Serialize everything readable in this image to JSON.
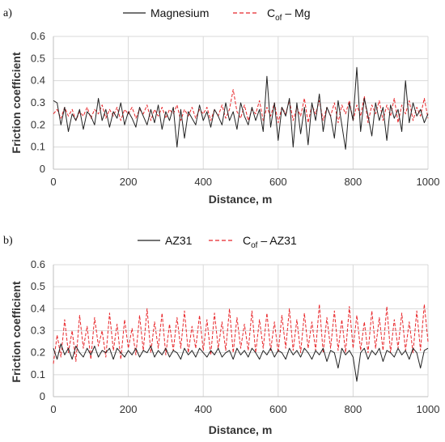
{
  "chart_data": [
    {
      "type": "line",
      "panel_label": "a)",
      "xlabel": "Distance, m",
      "ylabel": "Friction coefficient",
      "xlim": [
        0,
        1000
      ],
      "ylim": [
        0,
        0.6
      ],
      "xticks": [
        0,
        200,
        400,
        600,
        800,
        1000
      ],
      "yticks": [
        0,
        0.1,
        0.2,
        0.3,
        0.4,
        0.5,
        0.6
      ],
      "grid": true,
      "legend_position": "top-center",
      "series": [
        {
          "name": "Magnesium",
          "legend_label": "Magnesium",
          "style": "solid",
          "color": "#222222",
          "x": [
            0,
            10,
            20,
            30,
            40,
            50,
            60,
            70,
            80,
            90,
            100,
            110,
            120,
            130,
            140,
            150,
            160,
            170,
            180,
            190,
            200,
            210,
            220,
            230,
            240,
            250,
            260,
            270,
            280,
            290,
            300,
            310,
            320,
            330,
            340,
            350,
            360,
            370,
            380,
            390,
            400,
            410,
            420,
            430,
            440,
            450,
            460,
            470,
            480,
            490,
            500,
            510,
            520,
            530,
            540,
            550,
            560,
            570,
            580,
            590,
            600,
            610,
            620,
            630,
            640,
            650,
            660,
            670,
            680,
            690,
            700,
            710,
            720,
            730,
            740,
            750,
            760,
            770,
            780,
            790,
            800,
            810,
            820,
            830,
            840,
            850,
            860,
            870,
            880,
            890,
            900,
            910,
            920,
            930,
            940,
            950,
            960,
            970,
            980,
            990,
            1000
          ],
          "values": [
            0.31,
            0.3,
            0.2,
            0.28,
            0.17,
            0.25,
            0.22,
            0.27,
            0.18,
            0.26,
            0.24,
            0.2,
            0.32,
            0.22,
            0.27,
            0.19,
            0.26,
            0.23,
            0.3,
            0.2,
            0.26,
            0.23,
            0.19,
            0.28,
            0.24,
            0.2,
            0.27,
            0.21,
            0.29,
            0.18,
            0.26,
            0.22,
            0.28,
            0.1,
            0.27,
            0.14,
            0.26,
            0.23,
            0.2,
            0.29,
            0.22,
            0.26,
            0.19,
            0.27,
            0.24,
            0.2,
            0.3,
            0.22,
            0.26,
            0.18,
            0.3,
            0.24,
            0.2,
            0.28,
            0.22,
            0.27,
            0.17,
            0.42,
            0.19,
            0.3,
            0.13,
            0.28,
            0.24,
            0.32,
            0.1,
            0.3,
            0.16,
            0.28,
            0.11,
            0.3,
            0.22,
            0.34,
            0.17,
            0.28,
            0.24,
            0.14,
            0.31,
            0.2,
            0.09,
            0.3,
            0.22,
            0.46,
            0.17,
            0.32,
            0.24,
            0.15,
            0.3,
            0.22,
            0.28,
            0.13,
            0.29,
            0.23,
            0.27,
            0.17,
            0.4,
            0.21,
            0.3,
            0.24,
            0.27,
            0.21,
            0.25
          ]
        },
        {
          "name": "Cof – Mg",
          "legend_label": "C",
          "legend_subscript": "of",
          "legend_suffix": " – Mg",
          "style": "dashed",
          "color": "#e8262a",
          "x": [
            0,
            10,
            20,
            30,
            40,
            50,
            60,
            70,
            80,
            90,
            100,
            110,
            120,
            130,
            140,
            150,
            160,
            170,
            180,
            190,
            200,
            210,
            220,
            230,
            240,
            250,
            260,
            270,
            280,
            290,
            300,
            310,
            320,
            330,
            340,
            350,
            360,
            370,
            380,
            390,
            400,
            410,
            420,
            430,
            440,
            450,
            460,
            470,
            480,
            490,
            500,
            510,
            520,
            530,
            540,
            550,
            560,
            570,
            580,
            590,
            600,
            610,
            620,
            630,
            640,
            650,
            660,
            670,
            680,
            690,
            700,
            710,
            720,
            730,
            740,
            750,
            760,
            770,
            780,
            790,
            800,
            810,
            820,
            830,
            840,
            850,
            860,
            870,
            880,
            890,
            900,
            910,
            920,
            930,
            940,
            950,
            960,
            970,
            980,
            990,
            1000
          ],
          "values": [
            0.25,
            0.27,
            0.23,
            0.28,
            0.24,
            0.27,
            0.22,
            0.26,
            0.24,
            0.28,
            0.23,
            0.27,
            0.25,
            0.29,
            0.23,
            0.27,
            0.24,
            0.28,
            0.22,
            0.27,
            0.25,
            0.28,
            0.23,
            0.27,
            0.25,
            0.29,
            0.22,
            0.27,
            0.24,
            0.28,
            0.23,
            0.27,
            0.25,
            0.29,
            0.22,
            0.27,
            0.24,
            0.28,
            0.23,
            0.27,
            0.25,
            0.28,
            0.22,
            0.27,
            0.24,
            0.29,
            0.23,
            0.27,
            0.36,
            0.26,
            0.23,
            0.29,
            0.22,
            0.27,
            0.25,
            0.31,
            0.22,
            0.28,
            0.24,
            0.3,
            0.21,
            0.28,
            0.25,
            0.31,
            0.22,
            0.28,
            0.24,
            0.32,
            0.21,
            0.29,
            0.25,
            0.31,
            0.22,
            0.28,
            0.24,
            0.3,
            0.21,
            0.29,
            0.25,
            0.31,
            0.22,
            0.29,
            0.24,
            0.33,
            0.21,
            0.29,
            0.25,
            0.31,
            0.22,
            0.29,
            0.24,
            0.32,
            0.21,
            0.29,
            0.25,
            0.31,
            0.22,
            0.28,
            0.24,
            0.32,
            0.23
          ]
        }
      ]
    },
    {
      "type": "line",
      "panel_label": "b)",
      "xlabel": "Distance, m",
      "ylabel": "Friction coefficient",
      "xlim": [
        0,
        1000
      ],
      "ylim": [
        0,
        0.6
      ],
      "xticks": [
        0,
        200,
        400,
        600,
        800,
        1000
      ],
      "yticks": [
        0,
        0.1,
        0.2,
        0.3,
        0.4,
        0.5,
        0.6
      ],
      "grid": true,
      "legend_position": "top-center",
      "series": [
        {
          "name": "AZ31",
          "legend_label": "AZ31",
          "style": "solid",
          "color": "#222222",
          "x": [
            0,
            10,
            20,
            30,
            40,
            50,
            60,
            70,
            80,
            90,
            100,
            110,
            120,
            130,
            140,
            150,
            160,
            170,
            180,
            190,
            200,
            210,
            220,
            230,
            240,
            250,
            260,
            270,
            280,
            290,
            300,
            310,
            320,
            330,
            340,
            350,
            360,
            370,
            380,
            390,
            400,
            410,
            420,
            430,
            440,
            450,
            460,
            470,
            480,
            490,
            500,
            510,
            520,
            530,
            540,
            550,
            560,
            570,
            580,
            590,
            600,
            610,
            620,
            630,
            640,
            650,
            660,
            670,
            680,
            690,
            700,
            710,
            720,
            730,
            740,
            750,
            760,
            770,
            780,
            790,
            800,
            810,
            820,
            830,
            840,
            850,
            860,
            870,
            880,
            890,
            900,
            910,
            920,
            930,
            940,
            950,
            960,
            970,
            980,
            990,
            1000
          ],
          "values": [
            0.22,
            0.17,
            0.24,
            0.19,
            0.22,
            0.17,
            0.23,
            0.2,
            0.18,
            0.22,
            0.19,
            0.23,
            0.18,
            0.21,
            0.2,
            0.22,
            0.17,
            0.22,
            0.2,
            0.18,
            0.21,
            0.19,
            0.22,
            0.18,
            0.21,
            0.2,
            0.23,
            0.18,
            0.21,
            0.19,
            0.22,
            0.18,
            0.21,
            0.2,
            0.17,
            0.22,
            0.19,
            0.21,
            0.18,
            0.22,
            0.2,
            0.18,
            0.21,
            0.19,
            0.22,
            0.18,
            0.2,
            0.21,
            0.17,
            0.22,
            0.19,
            0.21,
            0.18,
            0.22,
            0.2,
            0.17,
            0.21,
            0.19,
            0.22,
            0.18,
            0.21,
            0.2,
            0.17,
            0.22,
            0.19,
            0.21,
            0.18,
            0.22,
            0.2,
            0.17,
            0.21,
            0.19,
            0.22,
            0.16,
            0.21,
            0.2,
            0.13,
            0.22,
            0.19,
            0.21,
            0.18,
            0.07,
            0.2,
            0.22,
            0.17,
            0.21,
            0.19,
            0.22,
            0.16,
            0.21,
            0.2,
            0.18,
            0.22,
            0.19,
            0.21,
            0.17,
            0.22,
            0.2,
            0.13,
            0.21,
            0.22
          ]
        },
        {
          "name": "Cof – AZ31",
          "legend_label": "C",
          "legend_subscript": "of",
          "legend_suffix": " – AZ31",
          "style": "dashed",
          "color": "#e8262a",
          "x": [
            0,
            10,
            20,
            30,
            40,
            50,
            60,
            70,
            80,
            90,
            100,
            110,
            120,
            130,
            140,
            150,
            160,
            170,
            180,
            190,
            200,
            210,
            220,
            230,
            240,
            250,
            260,
            270,
            280,
            290,
            300,
            310,
            320,
            330,
            340,
            350,
            360,
            370,
            380,
            390,
            400,
            410,
            420,
            430,
            440,
            450,
            460,
            470,
            480,
            490,
            500,
            510,
            520,
            530,
            540,
            550,
            560,
            570,
            580,
            590,
            600,
            610,
            620,
            630,
            640,
            650,
            660,
            670,
            680,
            690,
            700,
            710,
            720,
            730,
            740,
            750,
            760,
            770,
            780,
            790,
            800,
            810,
            820,
            830,
            840,
            850,
            860,
            870,
            880,
            890,
            900,
            910,
            920,
            930,
            940,
            950,
            960,
            970,
            980,
            990,
            1000
          ],
          "values": [
            0.15,
            0.28,
            0.18,
            0.35,
            0.2,
            0.3,
            0.16,
            0.37,
            0.22,
            0.32,
            0.17,
            0.36,
            0.23,
            0.3,
            0.18,
            0.38,
            0.21,
            0.33,
            0.17,
            0.35,
            0.22,
            0.31,
            0.19,
            0.37,
            0.21,
            0.4,
            0.2,
            0.34,
            0.22,
            0.38,
            0.19,
            0.33,
            0.21,
            0.36,
            0.22,
            0.39,
            0.2,
            0.32,
            0.22,
            0.37,
            0.21,
            0.35,
            0.19,
            0.38,
            0.22,
            0.34,
            0.21,
            0.4,
            0.2,
            0.36,
            0.22,
            0.33,
            0.21,
            0.39,
            0.2,
            0.35,
            0.22,
            0.38,
            0.21,
            0.34,
            0.2,
            0.37,
            0.22,
            0.4,
            0.21,
            0.35,
            0.2,
            0.38,
            0.22,
            0.34,
            0.21,
            0.42,
            0.2,
            0.36,
            0.22,
            0.39,
            0.21,
            0.35,
            0.2,
            0.41,
            0.22,
            0.37,
            0.21,
            0.34,
            0.2,
            0.39,
            0.22,
            0.36,
            0.21,
            0.41,
            0.2,
            0.35,
            0.22,
            0.38,
            0.21,
            0.34,
            0.2,
            0.39,
            0.21,
            0.42,
            0.25
          ]
        }
      ]
    }
  ]
}
